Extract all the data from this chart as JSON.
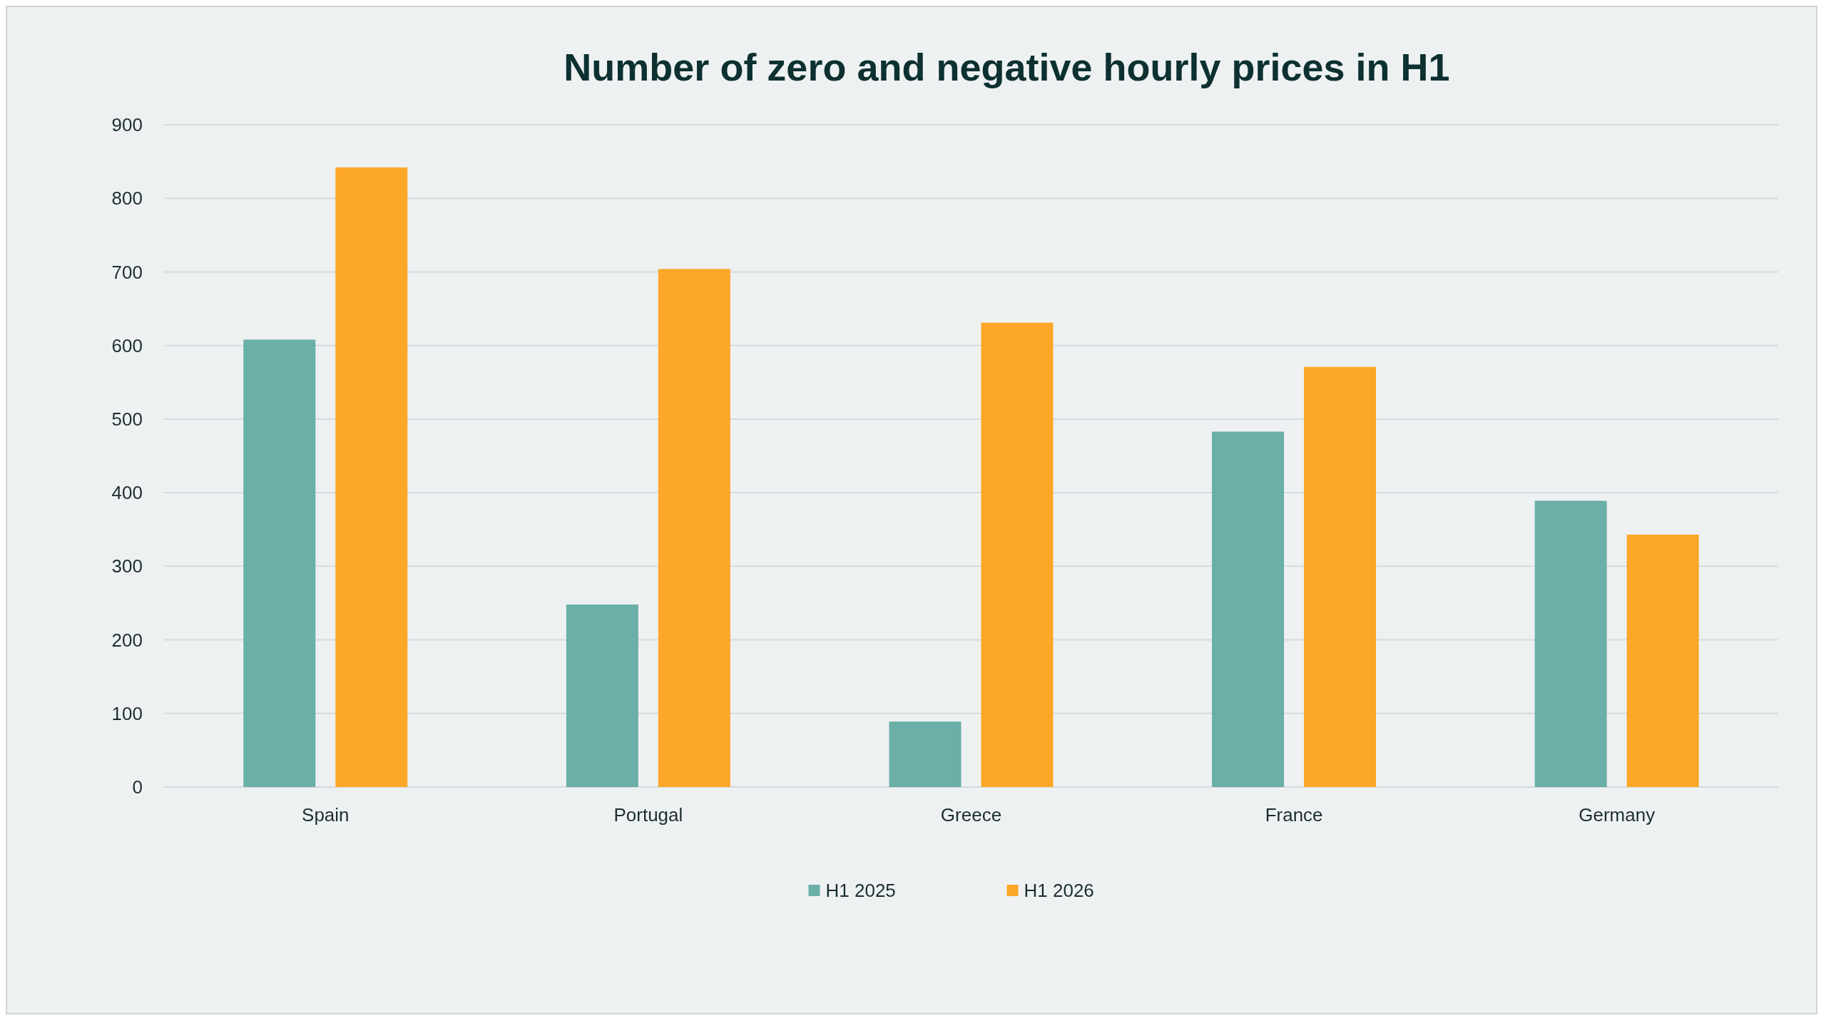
{
  "chart_data": {
    "type": "bar",
    "title": "Number of zero and negative hourly prices in H1",
    "categories": [
      "Spain",
      "Portugal",
      "Greece",
      "France",
      "Germany"
    ],
    "series": [
      {
        "name": "H1 2025",
        "color": "#6aafa8",
        "values": [
          608,
          248,
          89,
          483,
          389
        ]
      },
      {
        "name": "H1 2026",
        "color": "#fca728",
        "values": [
          842,
          704,
          631,
          571,
          343
        ]
      }
    ],
    "ylim": [
      0,
      900
    ],
    "yticks": [
      0,
      100,
      200,
      300,
      400,
      500,
      600,
      700,
      800,
      900
    ],
    "grid": "y",
    "legend": "bottom"
  }
}
